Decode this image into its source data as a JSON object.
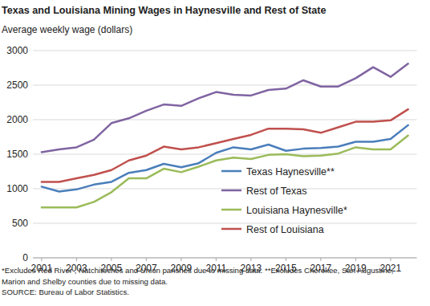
{
  "chart_data": {
    "type": "line",
    "title": "Texas and Louisiana Mining Wages in Haynesville and Rest of State",
    "subtitle": "Average weekly wage (dollars)",
    "notes": [
      "*Excludes Red River , Natchitoches and Union parishes due to missing data.",
      "**Excludes Cherokee, San Augustine, Marion and Shelby counties due to missing data."
    ],
    "source": "SOURCE: Bureau of Labor Statistics.",
    "x": [
      2001,
      2002,
      2003,
      2004,
      2005,
      2006,
      2007,
      2008,
      2009,
      2010,
      2011,
      2012,
      2013,
      2014,
      2015,
      2016,
      2017,
      2018,
      2019,
      2020,
      2021,
      2022
    ],
    "xlim": [
      2000.5,
      2022.5
    ],
    "xticks": [
      2001,
      2003,
      2005,
      2007,
      2009,
      2011,
      2013,
      2015,
      2017,
      2019,
      2021
    ],
    "ylim": [
      0,
      3000
    ],
    "yticks": [
      0,
      500,
      1000,
      1500,
      2000,
      2500,
      3000
    ],
    "grid": true,
    "legend": "lower right",
    "series": [
      {
        "name": "Texas Haynesville**",
        "color": "#4a7ebb",
        "values": [
          1030,
          960,
          990,
          1060,
          1100,
          1230,
          1270,
          1360,
          1310,
          1370,
          1520,
          1600,
          1570,
          1640,
          1550,
          1580,
          1590,
          1610,
          1680,
          1680,
          1720,
          1920
        ]
      },
      {
        "name": "Rest of Texas",
        "color": "#8064a2",
        "values": [
          1530,
          1570,
          1600,
          1710,
          1950,
          2020,
          2130,
          2220,
          2200,
          2310,
          2400,
          2360,
          2350,
          2430,
          2450,
          2570,
          2480,
          2480,
          2600,
          2760,
          2620,
          2810
        ]
      },
      {
        "name": "Louisiana Haynesville*",
        "color": "#9bbb59",
        "values": [
          730,
          730,
          730,
          810,
          950,
          1150,
          1150,
          1290,
          1240,
          1320,
          1410,
          1450,
          1430,
          1490,
          1500,
          1470,
          1480,
          1510,
          1600,
          1570,
          1570,
          1770
        ]
      },
      {
        "name": "Rest of Louisiana",
        "color": "#c0504d",
        "values": [
          1100,
          1100,
          1150,
          1200,
          1270,
          1410,
          1480,
          1610,
          1570,
          1600,
          1660,
          1720,
          1780,
          1870,
          1870,
          1860,
          1810,
          1890,
          1970,
          1970,
          1990,
          2150
        ]
      }
    ]
  }
}
